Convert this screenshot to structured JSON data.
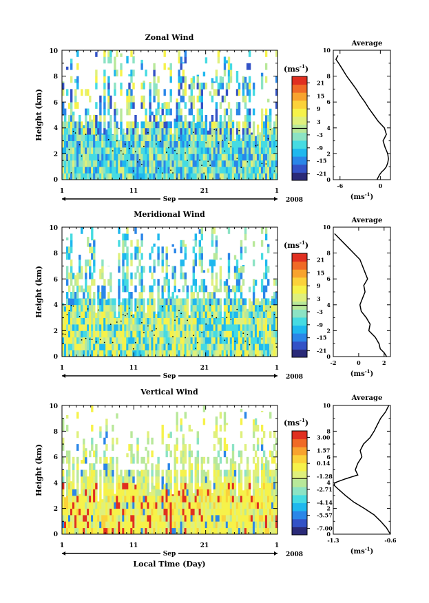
{
  "figure": {
    "xlabel": "Local Time (Day)",
    "month_label": "Sep",
    "year_label": "2008",
    "unit_label": "(ms",
    "unit_exp": "-1",
    "unit_close": ")",
    "avg_unit_label": "(ms",
    "avg_unit_exp": "-1",
    "avg_unit_close": ")",
    "avg_title": "Average"
  },
  "chart_data": [
    {
      "type": "heatmap",
      "title": "Zonal Wind",
      "ylabel": "Height (km)",
      "x_ticks": [
        "1",
        "11",
        "21",
        "1"
      ],
      "y_ticks": [
        "0",
        "2",
        "4",
        "6",
        "8",
        "10"
      ],
      "ylim": [
        0,
        10
      ],
      "colorbar": {
        "labels": [
          "21",
          "15",
          "9",
          "3",
          "-3",
          "-9",
          "-15",
          "-21"
        ],
        "range": [
          -24,
          24
        ],
        "zero_line_value": 0
      },
      "average_profile": {
        "x_ticks": [
          "-6",
          "0"
        ],
        "xlim": [
          -7,
          1.5
        ],
        "heights": [
          0,
          0.2,
          0.4,
          0.6,
          0.8,
          1.0,
          1.3,
          1.6,
          2.0,
          2.5,
          3.0,
          3.5,
          4.0,
          4.5,
          5.0,
          5.5,
          6.0,
          6.5,
          7.0,
          7.5,
          8.0,
          8.5,
          9.0,
          9.3,
          9.6
        ],
        "values": [
          -0.5,
          -0.3,
          -0.1,
          0.2,
          0.6,
          0.9,
          1.1,
          1.2,
          1.1,
          0.7,
          0.4,
          0.9,
          0.6,
          -0.3,
          -1.0,
          -1.7,
          -2.3,
          -3.0,
          -3.6,
          -4.3,
          -5.0,
          -5.6,
          -6.2,
          -6.6,
          -6.3
        ]
      }
    },
    {
      "type": "heatmap",
      "title": "Meridional Wind",
      "ylabel": "Height (km)",
      "x_ticks": [
        "1",
        "11",
        "21",
        "1"
      ],
      "y_ticks": [
        "0",
        "2",
        "4",
        "6",
        "8",
        "10"
      ],
      "ylim": [
        0,
        10
      ],
      "colorbar": {
        "labels": [
          "21",
          "15",
          "9",
          "3",
          "-3",
          "-9",
          "-15",
          "-21"
        ],
        "range": [
          -24,
          24
        ],
        "zero_line_value": 0
      },
      "average_profile": {
        "x_ticks": [
          "-2",
          "0",
          "2"
        ],
        "xlim": [
          -2,
          2.5
        ],
        "heights": [
          0,
          0.3,
          0.6,
          1.0,
          1.5,
          2.0,
          2.5,
          3.0,
          3.5,
          4.0,
          4.5,
          5.0,
          5.5,
          6.0,
          6.5,
          7.0,
          7.5,
          8.0,
          8.5,
          9.0,
          9.5
        ],
        "values": [
          2.2,
          2.0,
          1.7,
          1.6,
          1.3,
          0.8,
          0.9,
          0.6,
          0.2,
          0.1,
          0.3,
          0.5,
          0.4,
          0.7,
          0.5,
          0.3,
          0.1,
          -0.4,
          -0.9,
          -1.4,
          -1.9
        ]
      }
    },
    {
      "type": "heatmap",
      "title": "Vertical Wind",
      "ylabel": "Height (km)",
      "x_ticks": [
        "1",
        "11",
        "21",
        "1"
      ],
      "y_ticks": [
        "0",
        "2",
        "4",
        "6",
        "8",
        "10"
      ],
      "ylim": [
        0,
        10
      ],
      "colorbar": {
        "labels": [
          "3.00",
          "1.57",
          "0.14",
          "-1.28",
          "-2.71",
          "-4.14",
          "-5.57",
          "-7.00"
        ],
        "range": [
          -8,
          4
        ],
        "zero_line_value": -1.5
      },
      "average_profile": {
        "x_ticks": [
          "-1.3",
          "-0.6"
        ],
        "xlim": [
          -1.3,
          -0.6
        ],
        "heights": [
          0,
          0.5,
          1.0,
          1.5,
          2.0,
          2.5,
          3.0,
          3.5,
          3.8,
          4.0,
          4.3,
          4.6,
          5.0,
          5.5,
          6.0,
          6.5,
          7.0,
          7.5,
          8.0,
          8.5,
          9.0,
          9.5,
          10.0
        ],
        "values": [
          -0.6,
          -0.65,
          -0.72,
          -0.8,
          -0.92,
          -1.05,
          -1.15,
          -1.24,
          -1.29,
          -1.28,
          -1.15,
          -1.0,
          -1.03,
          -1.0,
          -0.95,
          -0.97,
          -0.93,
          -0.85,
          -0.8,
          -0.76,
          -0.72,
          -0.66,
          -0.62
        ]
      }
    }
  ]
}
